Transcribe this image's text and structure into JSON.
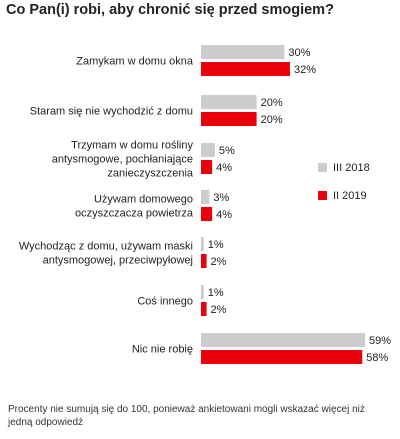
{
  "chart_data": {
    "type": "bar",
    "orientation": "horizontal",
    "title": "Co Pan(i) robi, aby chronić się przed smogiem?",
    "categories": [
      [
        "Zamykam w domu okna"
      ],
      [
        "Staram się nie wychodzić z domu"
      ],
      [
        "Trzymam w domu rośliny",
        "antysmogowe, pochłaniające",
        "zanieczyszczenia"
      ],
      [
        "Używam domowego",
        "oczyszczacza powietrza"
      ],
      [
        "Wychodząc z domu, używam maski",
        "antysmogowej, przeciwpyłowej"
      ],
      [
        "Coś innego"
      ],
      [
        "Nic nie robię"
      ]
    ],
    "series": [
      {
        "name": "III 2018",
        "color": "#cccccc",
        "values": [
          30,
          20,
          5,
          3,
          1,
          1,
          59
        ]
      },
      {
        "name": "II 2019",
        "color": "#e8000b",
        "values": [
          32,
          20,
          4,
          4,
          2,
          2,
          58
        ]
      }
    ],
    "value_suffix": "%",
    "xlim": [
      0,
      62
    ],
    "legend_position": "right",
    "grid": false
  },
  "footnote": "Procenty nie sumują się do 100, ponieważ ankietowani mogli wskazać więcej niż jedną odpowiedź"
}
